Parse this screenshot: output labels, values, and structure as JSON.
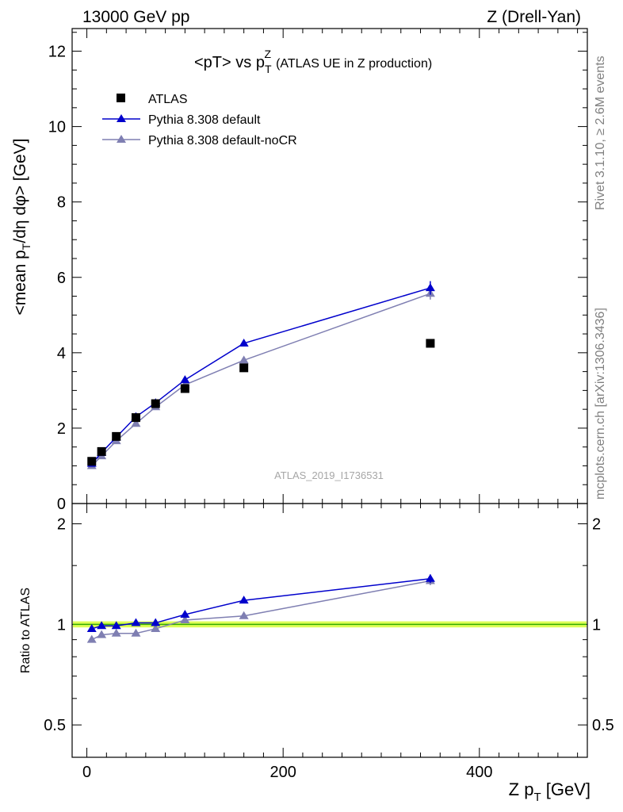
{
  "header": {
    "left": "13000 GeV pp",
    "right": "Z (Drell-Yan)"
  },
  "side_labels": {
    "rivet": "Rivet 3.1.10, ≥ 2.6M events",
    "mcplots": "mcplots.cern.ch [arXiv:1306.3436]"
  },
  "analysis_id": "ATLAS_2019_I1736531",
  "colors": {
    "data": "#000000",
    "default": "#0000cc",
    "nocr": "#7f7fb2",
    "band_fill": "#ddff55",
    "band_line": "#33aa00"
  },
  "chart_data": [
    {
      "type": "scatter",
      "title_main": "<pT> vs p",
      "title_var_sub": "T",
      "title_var_sup": "Z",
      "title_note": "(ATLAS UE in Z production)",
      "ylabel_parts": [
        "<mean p",
        "T",
        "/dη dφ> [GeV]"
      ],
      "xlim": [
        -15,
        510
      ],
      "ylim": [
        0,
        12.6
      ],
      "yticks": [
        0,
        2,
        4,
        6,
        8,
        10,
        12
      ],
      "ytick_labels": [
        "0",
        "2",
        "4",
        "6",
        "8",
        "10",
        "12"
      ],
      "legend": {
        "position": "top-left",
        "entries": [
          "ATLAS",
          "Pythia 8.308 default",
          "Pythia 8.308 default-noCR"
        ]
      },
      "x": [
        5,
        15,
        30,
        50,
        70,
        100,
        160,
        350
      ],
      "series": [
        {
          "name": "ATLAS",
          "marker": "square",
          "values": [
            1.12,
            1.38,
            1.78,
            2.28,
            2.65,
            3.05,
            3.6,
            4.25
          ]
        },
        {
          "name": "Pythia 8.308 default",
          "marker": "triangle",
          "values": [
            1.06,
            1.35,
            1.76,
            2.3,
            2.67,
            3.28,
            4.25,
            5.72
          ],
          "errors": [
            0,
            0,
            0,
            0,
            0,
            0,
            0,
            0.18
          ]
        },
        {
          "name": "Pythia 8.308 default-noCR",
          "marker": "triangle",
          "values": [
            1.0,
            1.26,
            1.66,
            2.12,
            2.56,
            3.15,
            3.8,
            5.57
          ],
          "errors": [
            0,
            0,
            0,
            0,
            0,
            0,
            0,
            0.16
          ]
        }
      ]
    },
    {
      "type": "scatter",
      "ylabel": "Ratio to ATLAS",
      "xlabel_parts": [
        "Z p",
        "T",
        " [GeV]"
      ],
      "xlim": [
        -15,
        510
      ],
      "ylim": [
        0.4,
        2.3
      ],
      "xticks": [
        0,
        200,
        400
      ],
      "xtick_labels": [
        "0",
        "200",
        "400"
      ],
      "yticks": [
        0.5,
        1,
        2
      ],
      "ytick_labels": [
        "0.5",
        "1",
        "2"
      ],
      "log_y": true,
      "reference_band": [
        0.99,
        1.01
      ],
      "x": [
        5,
        15,
        30,
        50,
        70,
        100,
        160,
        350
      ],
      "series": [
        {
          "name": "Pythia 8.308 default",
          "values": [
            0.97,
            0.99,
            0.99,
            1.01,
            1.01,
            1.07,
            1.18,
            1.37
          ],
          "errors": [
            0,
            0,
            0,
            0,
            0,
            0,
            0,
            0.04
          ]
        },
        {
          "name": "Pythia 8.308 default-noCR",
          "values": [
            0.9,
            0.93,
            0.94,
            0.94,
            0.97,
            1.03,
            1.06,
            1.35
          ],
          "errors": [
            0,
            0,
            0,
            0,
            0,
            0,
            0,
            0.04
          ]
        }
      ]
    }
  ]
}
